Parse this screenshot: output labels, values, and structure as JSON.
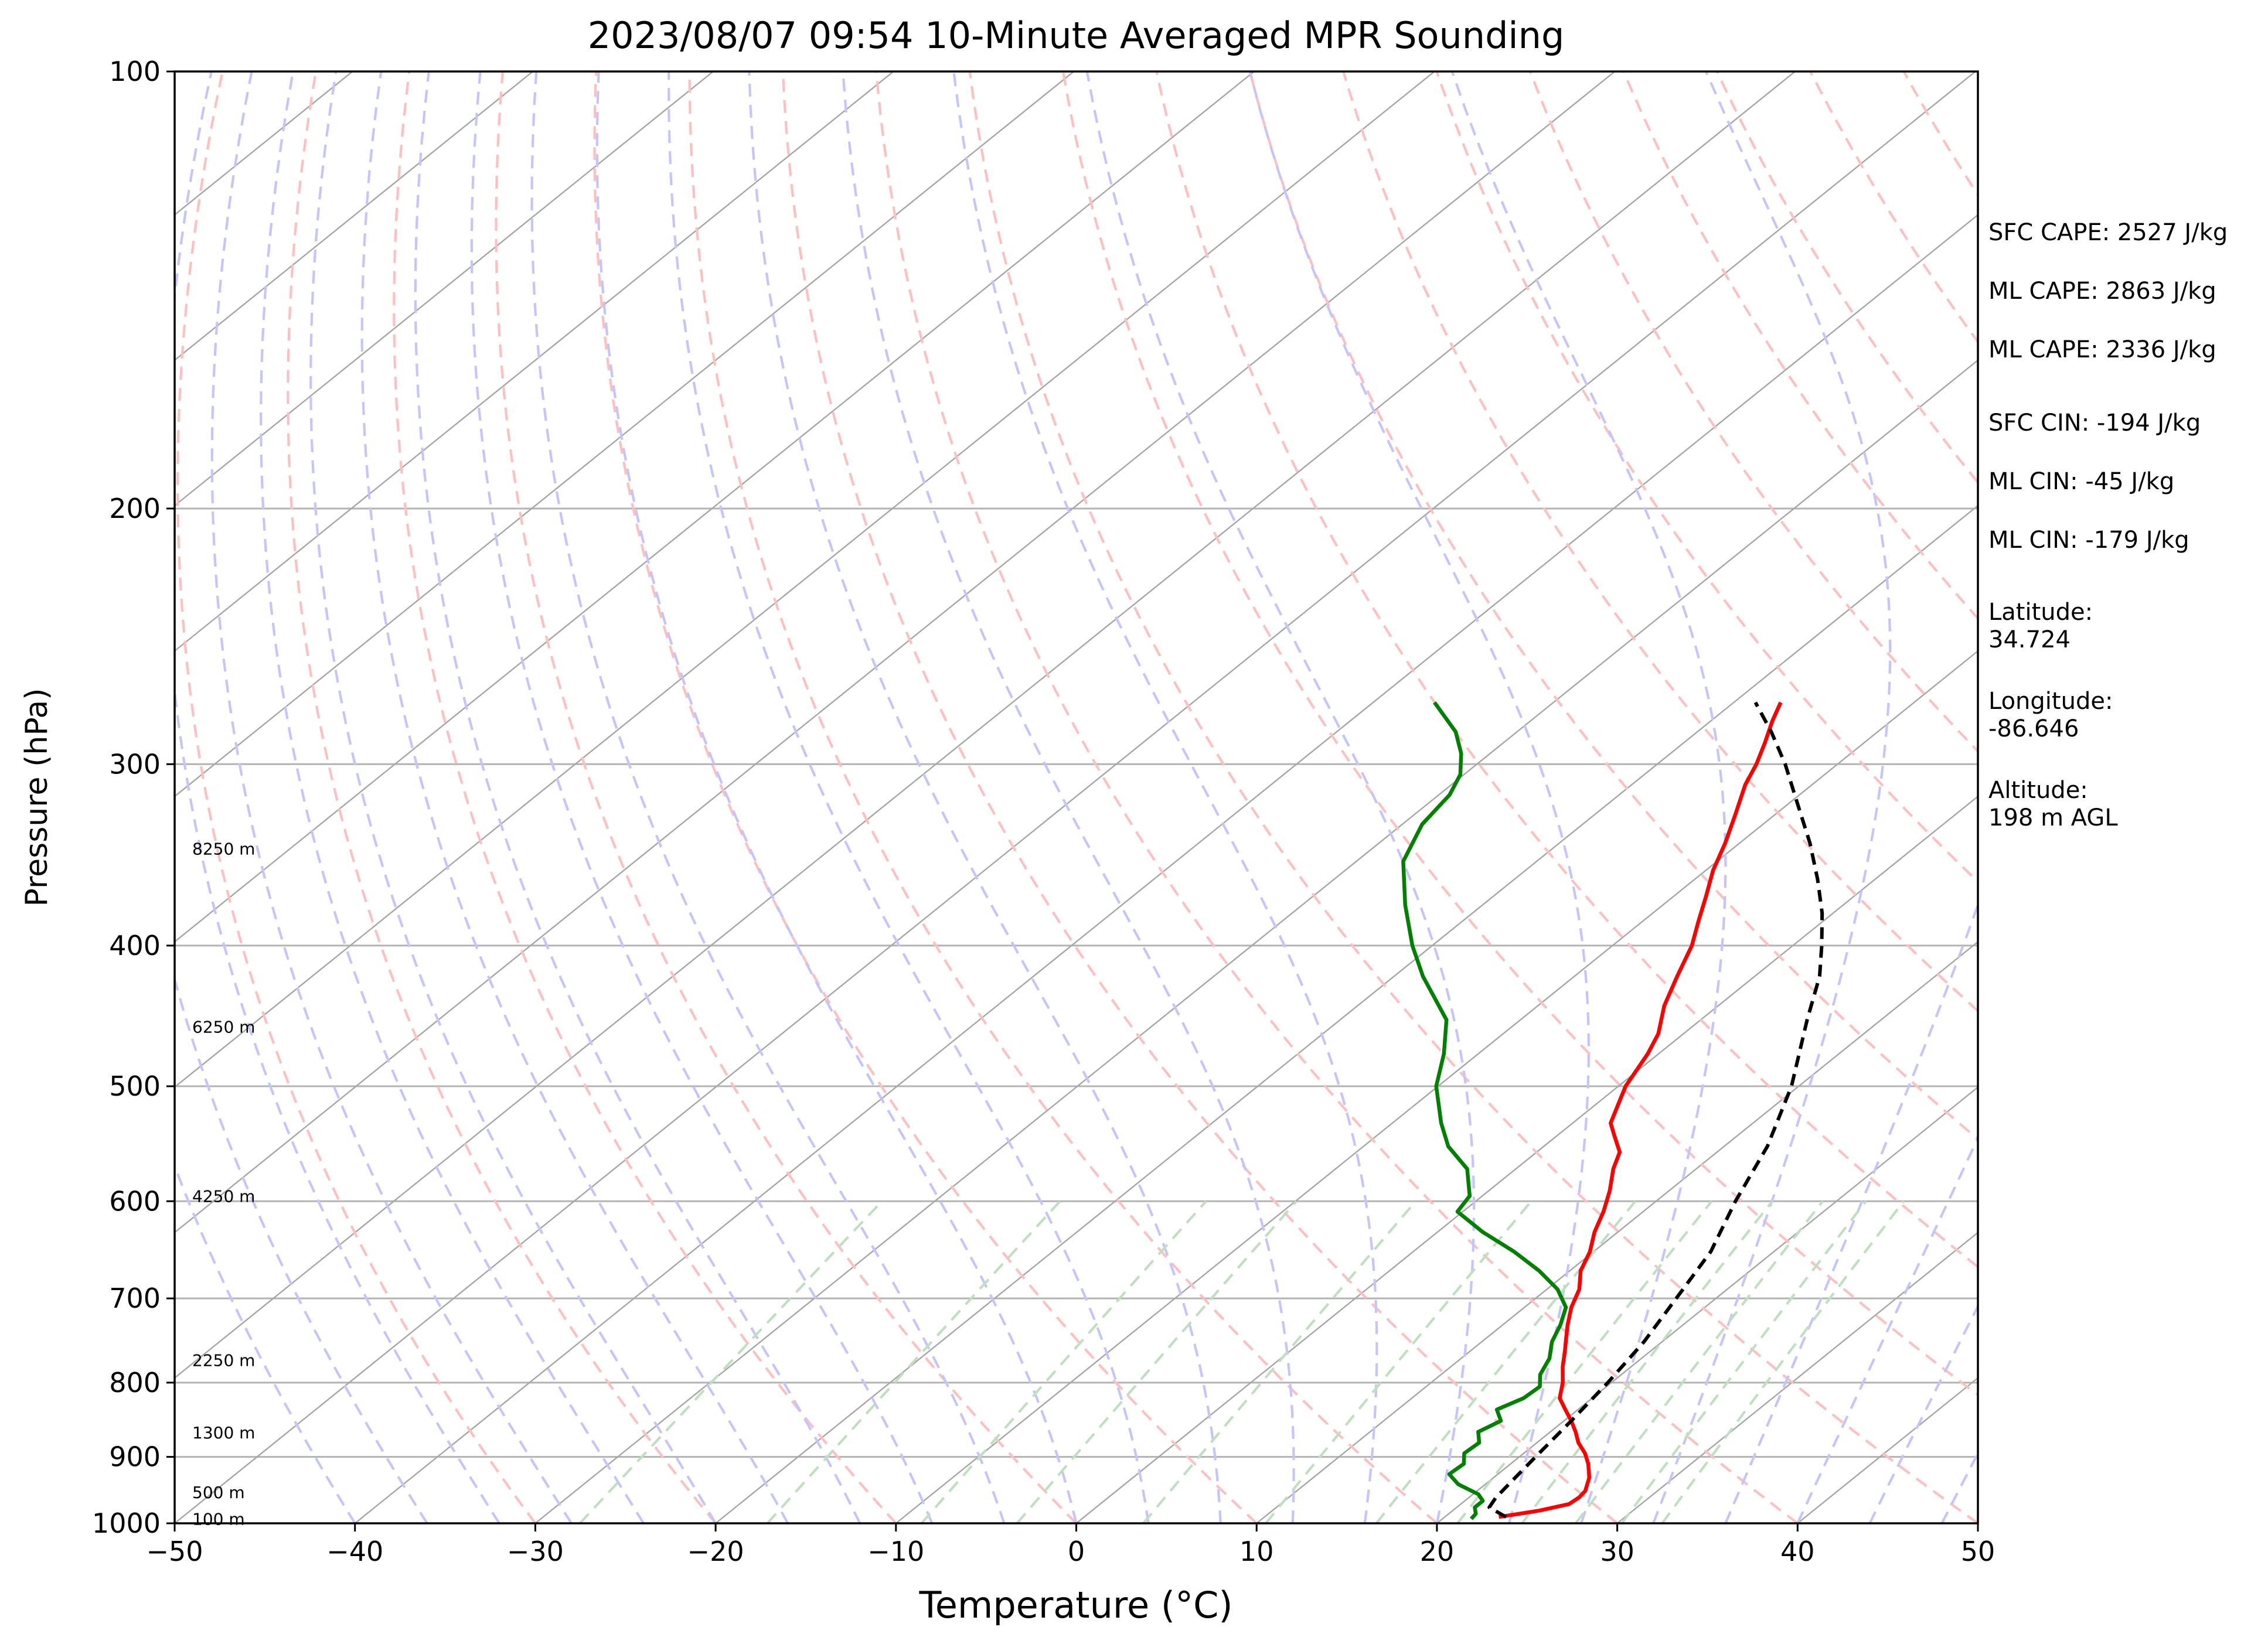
{
  "chart_data": {
    "type": "line",
    "subtype": "skew-t log-p",
    "title": "2023/08/07 09:54 10-Minute Averaged MPR Sounding",
    "xlabel": "Temperature (°C)",
    "ylabel": "Pressure (hPa)",
    "xlim": [
      -50,
      50
    ],
    "ylim": [
      1000,
      100
    ],
    "yscale": "log",
    "grid": true,
    "x_ticks": [
      "−50",
      "−40",
      "−30",
      "−20",
      "−10",
      "0",
      "10",
      "20",
      "30",
      "40",
      "50"
    ],
    "x_tick_values": [
      -50,
      -40,
      -30,
      -20,
      -10,
      0,
      10,
      20,
      30,
      40,
      50
    ],
    "y_ticks": [
      "100",
      "200",
      "300",
      "400",
      "500",
      "600",
      "700",
      "800",
      "900",
      "1000"
    ],
    "y_tick_values": [
      100,
      200,
      300,
      400,
      500,
      600,
      700,
      800,
      900,
      1000
    ],
    "height_labels": [
      {
        "text": "8250 m",
        "p": 343
      },
      {
        "text": "6250 m",
        "p": 455
      },
      {
        "text": "4250 m",
        "p": 595
      },
      {
        "text": "2250 m",
        "p": 772
      },
      {
        "text": "1300 m",
        "p": 866
      },
      {
        "text": "500 m",
        "p": 952
      },
      {
        "text": "100 m",
        "p": 993
      }
    ],
    "colors": {
      "temperature": "#ff0000",
      "dewpoint": "#008000",
      "parcel": "#000000",
      "dry_adiabat": "#ffbfbf",
      "moist_adiabat": "#c4c4ff",
      "mixing_ratio": "#bfe0bf",
      "isotherm": "#a6a6a6",
      "isobar": "#b3b3b3"
    },
    "series": [
      {
        "id": "temperature",
        "p": [
          990,
          980,
          970,
          960,
          950,
          930,
          910,
          895,
          880,
          865,
          850,
          835,
          820,
          800,
          780,
          760,
          745,
          730,
          710,
          690,
          670,
          650,
          630,
          610,
          590,
          570,
          555,
          540,
          530,
          500,
          475,
          460,
          440,
          420,
          400,
          385,
          370,
          355,
          340,
          325,
          310,
          300,
          290,
          280,
          272
        ],
        "t": [
          23.0,
          24.8,
          26.0,
          26.1,
          26.0,
          25.3,
          24.3,
          23.4,
          22.3,
          21.4,
          20.4,
          19.3,
          18.2,
          17.3,
          16.2,
          15.2,
          14.4,
          13.6,
          12.6,
          11.8,
          10.6,
          9.8,
          8.7,
          7.8,
          6.7,
          5.4,
          4.6,
          3.1,
          2.1,
          0.4,
          -0.6,
          -1.4,
          -3.0,
          -4.3,
          -5.6,
          -6.9,
          -8.2,
          -9.6,
          -10.8,
          -12.2,
          -13.7,
          -14.5,
          -15.5,
          -16.6,
          -17.4
        ]
      },
      {
        "id": "dewpoint",
        "p": [
          993,
          985,
          975,
          965,
          955,
          940,
          925,
          910,
          895,
          880,
          865,
          850,
          835,
          820,
          805,
          790,
          770,
          750,
          730,
          710,
          690,
          670,
          650,
          630,
          610,
          595,
          570,
          550,
          530,
          500,
          475,
          450,
          420,
          400,
          375,
          350,
          330,
          315,
          305,
          295,
          285,
          272
        ],
        "t": [
          21.6,
          21.5,
          21.0,
          21.0,
          20.3,
          18.5,
          17.3,
          17.4,
          16.7,
          16.8,
          16.0,
          16.5,
          15.5,
          16.2,
          16.3,
          15.5,
          14.9,
          13.9,
          13.2,
          12.3,
          10.6,
          8.3,
          5.6,
          2.5,
          -0.3,
          -0.7,
          -2.7,
          -5.3,
          -7.3,
          -10.1,
          -11.9,
          -14.1,
          -18.4,
          -21.1,
          -24.3,
          -27.4,
          -28.9,
          -29.4,
          -30.2,
          -31.6,
          -33.4,
          -36.6
        ]
      },
      {
        "id": "parcel",
        "p": [
          990,
          975,
          960,
          940,
          900,
          850,
          800,
          750,
          700,
          650,
          600,
          550,
          500,
          450,
          420,
          400,
          380,
          360,
          340,
          320,
          300,
          285,
          272
        ],
        "t": [
          23.4,
          21.8,
          21.5,
          21.3,
          20.9,
          20.4,
          19.8,
          19.0,
          17.8,
          16.5,
          14.4,
          12.4,
          9.6,
          5.9,
          3.6,
          1.6,
          -0.6,
          -3.2,
          -6.1,
          -9.4,
          -12.9,
          -15.9,
          -18.8
        ]
      }
    ],
    "indices": [
      {
        "label": "SFC CAPE: 2527 J/kg"
      },
      {
        "label": "ML CAPE: 2863 J/kg"
      },
      {
        "label": "ML CAPE: 2336 J/kg"
      },
      {
        "label": "SFC CIN: -194 J/kg"
      },
      {
        "label": "ML CIN: -45 J/kg"
      },
      {
        "label": "ML CIN: -179 J/kg"
      }
    ],
    "location": [
      {
        "label": "Latitude:",
        "value": "34.724"
      },
      {
        "label": "Longitude:",
        "value": "-86.646"
      },
      {
        "label": "Altitude:",
        "value": "198 m AGL"
      }
    ]
  }
}
